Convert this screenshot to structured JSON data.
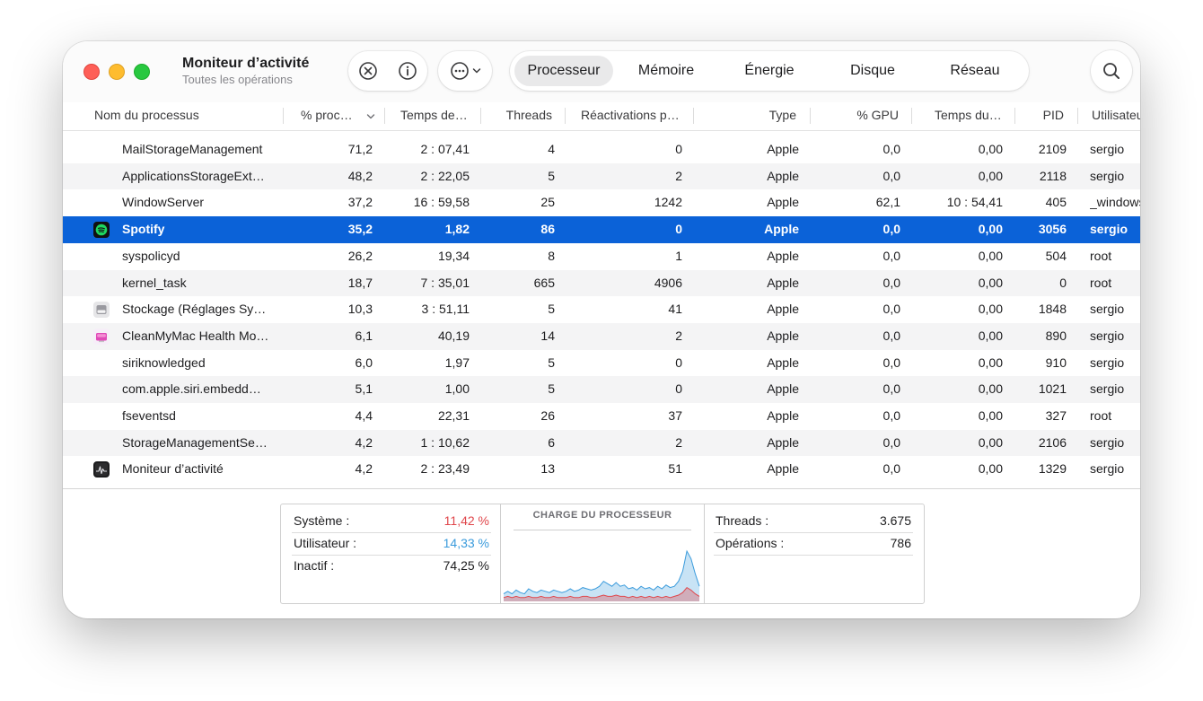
{
  "window": {
    "title": "Moniteur d’activité",
    "subtitle": "Toutes les opérations"
  },
  "toolbar": {
    "icons": [
      "stop-process-icon",
      "info-icon",
      "more-actions-icon",
      "chevron-down-icon",
      "search-icon"
    ],
    "tabs": [
      "Processeur",
      "Mémoire",
      "Énergie",
      "Disque",
      "Réseau"
    ],
    "active_tab": "Processeur"
  },
  "columns": [
    "Nom du processus",
    "% proc…",
    "Temps de…",
    "Threads",
    "Réactivations p…",
    "Type",
    "% GPU",
    "Temps du…",
    "PID",
    "Utilisateur"
  ],
  "rows": [
    {
      "name": "MailStorageManagement",
      "cpu": "71,2",
      "time": "2 : 07,41",
      "threads": "4",
      "wake": "0",
      "type": "Apple",
      "gpu": "0,0",
      "gputime": "0,00",
      "pid": "2109",
      "user": "sergio",
      "icon": ""
    },
    {
      "name": "ApplicationsStorageExt…",
      "cpu": "48,2",
      "time": "2 : 22,05",
      "threads": "5",
      "wake": "2",
      "type": "Apple",
      "gpu": "0,0",
      "gputime": "0,00",
      "pid": "2118",
      "user": "sergio",
      "icon": ""
    },
    {
      "name": "WindowServer",
      "cpu": "37,2",
      "time": "16 : 59,58",
      "threads": "25",
      "wake": "1242",
      "type": "Apple",
      "gpu": "62,1",
      "gputime": "10 : 54,41",
      "pid": "405",
      "user": "_windowserver",
      "icon": ""
    },
    {
      "name": "Spotify",
      "cpu": "35,2",
      "time": "1,82",
      "threads": "86",
      "wake": "0",
      "type": "Apple",
      "gpu": "0,0",
      "gputime": "0,00",
      "pid": "3056",
      "user": "sergio",
      "icon": "spotify-icon"
    },
    {
      "name": "syspolicyd",
      "cpu": "26,2",
      "time": "19,34",
      "threads": "8",
      "wake": "1",
      "type": "Apple",
      "gpu": "0,0",
      "gputime": "0,00",
      "pid": "504",
      "user": "root",
      "icon": ""
    },
    {
      "name": "kernel_task",
      "cpu": "18,7",
      "time": "7 : 35,01",
      "threads": "665",
      "wake": "4906",
      "type": "Apple",
      "gpu": "0,0",
      "gputime": "0,00",
      "pid": "0",
      "user": "root",
      "icon": ""
    },
    {
      "name": "Stockage (Réglages Sy…",
      "cpu": "10,3",
      "time": "3 : 51,11",
      "threads": "5",
      "wake": "41",
      "type": "Apple",
      "gpu": "0,0",
      "gputime": "0,00",
      "pid": "1848",
      "user": "sergio",
      "icon": "storage-icon"
    },
    {
      "name": "CleanMyMac Health Mo…",
      "cpu": "6,1",
      "time": "40,19",
      "threads": "14",
      "wake": "2",
      "type": "Apple",
      "gpu": "0,0",
      "gputime": "0,00",
      "pid": "890",
      "user": "sergio",
      "icon": "cleanmymac-icon"
    },
    {
      "name": "siriknowledged",
      "cpu": "6,0",
      "time": "1,97",
      "threads": "5",
      "wake": "0",
      "type": "Apple",
      "gpu": "0,0",
      "gputime": "0,00",
      "pid": "910",
      "user": "sergio",
      "icon": ""
    },
    {
      "name": "com.apple.siri.embedd…",
      "cpu": "5,1",
      "time": "1,00",
      "threads": "5",
      "wake": "0",
      "type": "Apple",
      "gpu": "0,0",
      "gputime": "0,00",
      "pid": "1021",
      "user": "sergio",
      "icon": ""
    },
    {
      "name": "fseventsd",
      "cpu": "4,4",
      "time": "22,31",
      "threads": "26",
      "wake": "37",
      "type": "Apple",
      "gpu": "0,0",
      "gputime": "0,00",
      "pid": "327",
      "user": "root",
      "icon": ""
    },
    {
      "name": "StorageManagementSe…",
      "cpu": "4,2",
      "time": "1 : 10,62",
      "threads": "6",
      "wake": "2",
      "type": "Apple",
      "gpu": "0,0",
      "gputime": "0,00",
      "pid": "2106",
      "user": "sergio",
      "icon": ""
    },
    {
      "name": "Moniteur d’activité",
      "cpu": "4,2",
      "time": "2 : 23,49",
      "threads": "13",
      "wake": "51",
      "type": "Apple",
      "gpu": "0,0",
      "gputime": "0,00",
      "pid": "1329",
      "user": "sergio",
      "icon": "activity-monitor-icon"
    }
  ],
  "selected_row": 3,
  "summary": {
    "systeme_label": "Système :",
    "systeme_value": "11,42 %",
    "utilisateur_label": "Utilisateur :",
    "utilisateur_value": "14,33 %",
    "inactif_label": "Inactif :",
    "inactif_value": "74,25 %",
    "graph_title": "CHARGE DU PROCESSEUR",
    "threads_label": "Threads :",
    "threads_value": "3.675",
    "operations_label": "Opérations :",
    "operations_value": "786"
  },
  "colors": {
    "selection": "#0b62d8",
    "system": "#e0474c",
    "user": "#3a9bdc"
  },
  "chart_data": {
    "type": "area",
    "series": [
      {
        "values": [
          3,
          4,
          3,
          4,
          3,
          3,
          4,
          3,
          3,
          4,
          3,
          3,
          4,
          3,
          3,
          3,
          4,
          3,
          3,
          4,
          4,
          3,
          3,
          4,
          5,
          4,
          4,
          5,
          4,
          4,
          3,
          4,
          3,
          4,
          3,
          4,
          3,
          4,
          3,
          4,
          3,
          4,
          5,
          7,
          11,
          9,
          6,
          4
        ]
      },
      {
        "values": [
          6,
          8,
          6,
          9,
          7,
          6,
          10,
          8,
          7,
          9,
          8,
          7,
          9,
          8,
          7,
          8,
          10,
          8,
          9,
          11,
          10,
          9,
          10,
          12,
          16,
          14,
          12,
          15,
          12,
          13,
          10,
          11,
          9,
          12,
          10,
          11,
          9,
          12,
          10,
          13,
          11,
          12,
          16,
          24,
          40,
          34,
          22,
          12
        ]
      }
    ]
  }
}
